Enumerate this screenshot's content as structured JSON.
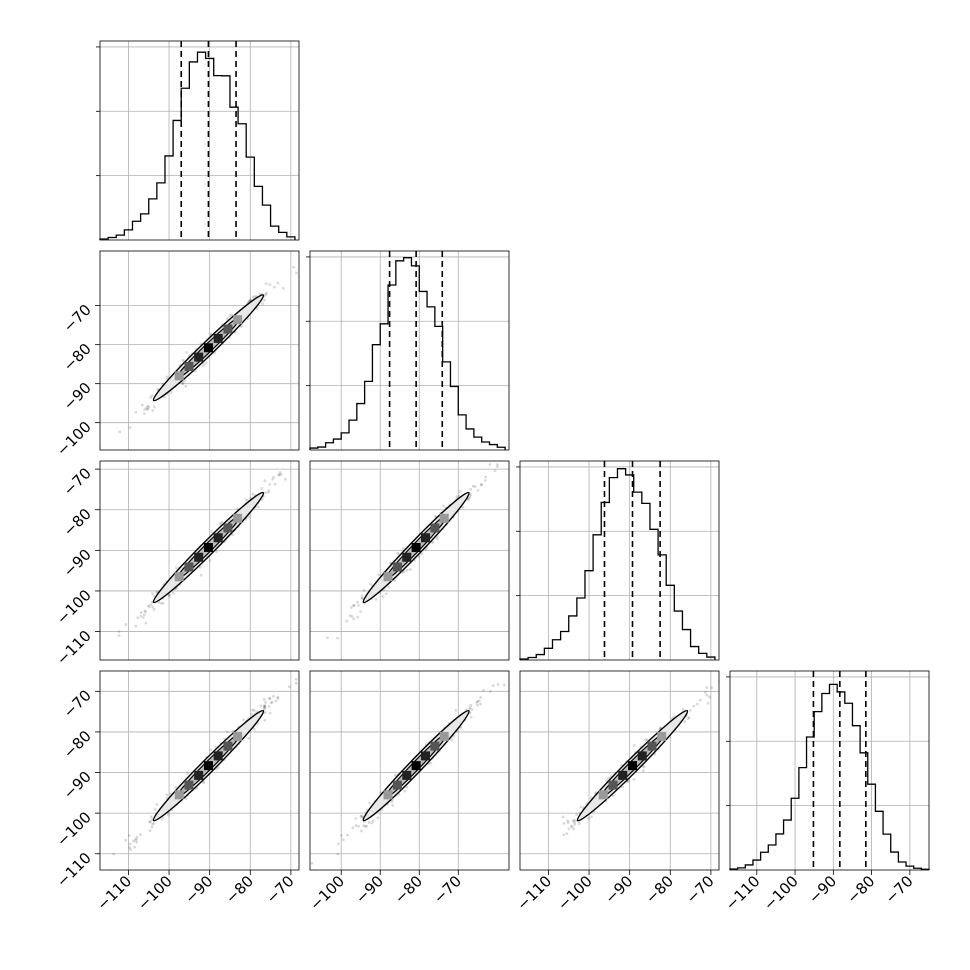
{
  "chart_data": {
    "type": "corner",
    "n_params": 4,
    "quantile_line_style": "dashed",
    "grid": true,
    "histograms": [
      {
        "param": 0,
        "range": [
          -117,
          -68
        ],
        "quantiles": [
          -97,
          -90.3,
          -83.5
        ],
        "bin_edges": [
          -117,
          -115,
          -113,
          -111,
          -109,
          -107,
          -105,
          -103,
          -101,
          -99,
          -97,
          -95,
          -93,
          -91,
          -89,
          -87,
          -85,
          -83,
          -81,
          -79,
          -77,
          -75,
          -73,
          -71,
          -69
        ],
        "counts": [
          0.005,
          0.013,
          0.025,
          0.052,
          0.096,
          0.134,
          0.211,
          0.293,
          0.431,
          0.613,
          0.778,
          0.913,
          0.963,
          0.931,
          0.843,
          0.842,
          0.681,
          0.596,
          0.425,
          0.275,
          0.179,
          0.071,
          0.039,
          0.016
        ]
      },
      {
        "param": 1,
        "range": [
          -108,
          -57
        ],
        "quantiles": [
          -87.6,
          -80.8,
          -74.1
        ],
        "bin_edges": [
          -108,
          -106,
          -104,
          -102,
          -100,
          -98,
          -96,
          -94,
          -92,
          -90,
          -88,
          -86,
          -84,
          -82,
          -80,
          -78,
          -76,
          -74,
          -72,
          -70,
          -68,
          -66,
          -64,
          -62,
          -60,
          -58
        ],
        "counts": [
          0.01,
          0.015,
          0.037,
          0.056,
          0.088,
          0.153,
          0.238,
          0.352,
          0.54,
          0.647,
          0.846,
          0.97,
          0.986,
          0.944,
          0.813,
          0.734,
          0.634,
          0.452,
          0.326,
          0.18,
          0.108,
          0.066,
          0.041,
          0.028,
          0.014
        ]
      },
      {
        "param": 2,
        "range": [
          -117,
          -68
        ],
        "quantiles": [
          -96.2,
          -89.3,
          -82.5
        ],
        "bin_edges": [
          -117,
          -115,
          -113,
          -111,
          -109,
          -107,
          -105,
          -103,
          -101,
          -99,
          -97,
          -95,
          -93,
          -91,
          -89,
          -87,
          -85,
          -83,
          -81,
          -79,
          -77,
          -75,
          -73,
          -71,
          -69
        ],
        "counts": [
          0.005,
          0.013,
          0.028,
          0.06,
          0.104,
          0.146,
          0.226,
          0.318,
          0.458,
          0.642,
          0.808,
          0.935,
          0.981,
          0.949,
          0.861,
          0.803,
          0.67,
          0.539,
          0.383,
          0.251,
          0.156,
          0.069,
          0.034,
          0.015
        ]
      },
      {
        "param": 3,
        "range": [
          -117,
          -65
        ],
        "quantiles": [
          -95.2,
          -88.3,
          -81.5
        ],
        "bin_edges": [
          -117,
          -115,
          -113,
          -111,
          -109,
          -107,
          -105,
          -103,
          -101,
          -99,
          -97,
          -95,
          -93,
          -91,
          -89,
          -87,
          -85,
          -83,
          -81,
          -79,
          -77,
          -75,
          -73,
          -71,
          -69,
          -67,
          -65
        ],
        "counts": [
          0.005,
          0.011,
          0.026,
          0.051,
          0.091,
          0.128,
          0.185,
          0.256,
          0.368,
          0.525,
          0.682,
          0.812,
          0.905,
          0.952,
          0.913,
          0.855,
          0.74,
          0.601,
          0.44,
          0.301,
          0.184,
          0.092,
          0.041,
          0.02,
          0.009,
          0.004
        ]
      }
    ],
    "scatter_panels": [
      {
        "row": 1,
        "col": 0,
        "xlim": [
          -117,
          -68
        ],
        "ylim": [
          -107,
          -56
        ],
        "center": [
          -90.3,
          -80.8
        ]
      },
      {
        "row": 2,
        "col": 0,
        "xlim": [
          -117,
          -68
        ],
        "ylim": [
          -117,
          -68
        ],
        "center": [
          -90.3,
          -89.3
        ]
      },
      {
        "row": 2,
        "col": 1,
        "xlim": [
          -108,
          -57
        ],
        "ylim": [
          -117,
          -68
        ],
        "center": [
          -80.8,
          -89.3
        ]
      },
      {
        "row": 3,
        "col": 0,
        "xlim": [
          -117,
          -68
        ],
        "ylim": [
          -114,
          -65
        ],
        "center": [
          -90.3,
          -88.3
        ]
      },
      {
        "row": 3,
        "col": 1,
        "xlim": [
          -108,
          -57
        ],
        "ylim": [
          -114,
          -65
        ],
        "center": [
          -80.8,
          -88.3
        ]
      },
      {
        "row": 3,
        "col": 2,
        "xlim": [
          -117,
          -68
        ],
        "ylim": [
          -114,
          -65
        ],
        "center": [
          -89.3,
          -88.3
        ]
      }
    ],
    "xticks": [
      {
        "values": [
          -110,
          -100,
          -90,
          -80,
          -70
        ],
        "labels": [
          "−110",
          "−100",
          "−90",
          "−80",
          "−70"
        ]
      },
      {
        "values": [
          -100,
          -90,
          -80,
          -70
        ],
        "labels": [
          "−100",
          "−90",
          "−80",
          "−70"
        ]
      },
      {
        "values": [
          -110,
          -100,
          -90,
          -80,
          -70
        ],
        "labels": [
          "−110",
          "−100",
          "−90",
          "−80",
          "−70"
        ]
      },
      {
        "values": [
          -110,
          -100,
          -90,
          -80,
          -70
        ],
        "labels": [
          "−110",
          "−100",
          "−90",
          "−80",
          "−70"
        ]
      }
    ],
    "yticks": [
      null,
      {
        "values": [
          -100,
          -90,
          -80,
          -70
        ],
        "labels": [
          "−100",
          "−90",
          "−80",
          "−70"
        ]
      },
      {
        "values": [
          -110,
          -100,
          -90,
          -80,
          -70
        ],
        "labels": [
          "−110",
          "−100",
          "−90",
          "−80",
          "−70"
        ]
      },
      {
        "values": [
          -110,
          -100,
          -90,
          -80,
          -70
        ],
        "labels": [
          "−110",
          "−100",
          "−90",
          "−80",
          "−70"
        ]
      }
    ]
  }
}
